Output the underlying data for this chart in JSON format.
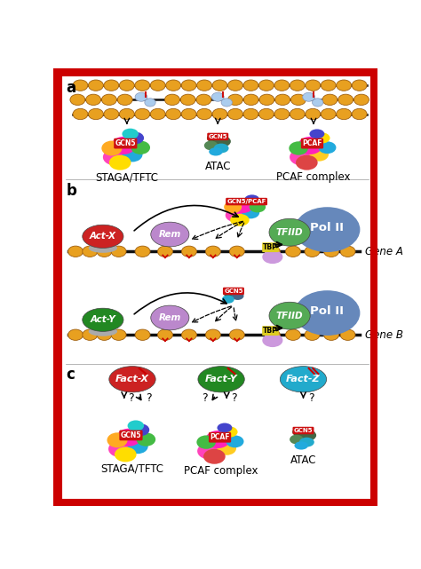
{
  "bg_color": "#ffffff",
  "border_color": "#cc0000",
  "border_width": 8,
  "section_a_label": "a",
  "section_b_label": "b",
  "section_c_label": "c",
  "nucleosome_color": "#e8a020",
  "nucleosome_outline": "#a06010",
  "dna_color": "#111111",
  "label_fontsize": 8.5,
  "small_fontsize": 7,
  "gene_label_fontsize": 8.5,
  "staga_label": "STAGA/TFTC",
  "atac_label": "ATAC",
  "pcaf_label": "PCAF complex",
  "gene_a_label": "Gene A",
  "gene_b_label": "Gene B",
  "staga_c_label": "STAGA/TFTC",
  "pcaf_c_label": "PCAF complex",
  "atac_c_label": "ATAC",
  "gcn5_color": "#cc1111",
  "gcn5_text_color": "#ffffff",
  "polii_color": "#6688bb",
  "tfiid_color": "#55aa55",
  "tbp_color": "#ddcc22",
  "act_x_color": "#cc2222",
  "act_y_color": "#228822",
  "rem_color": "#bb88cc",
  "fact_x_color": "#cc2222",
  "fact_y_color": "#228822",
  "fact_z_color": "#22aacc",
  "arrow_color": "#111111",
  "section_divider_color": "#999999",
  "staga_blobs": [
    [
      -18,
      12,
      17,
      12,
      "#ff44bb"
    ],
    [
      8,
      8,
      15,
      11,
      "#22aadd"
    ],
    [
      -5,
      -5,
      18,
      13,
      "#ff22bb"
    ],
    [
      20,
      -2,
      14,
      10,
      "#44bb44"
    ],
    [
      -22,
      -1,
      15,
      11,
      "#ffaa22"
    ],
    [
      12,
      -16,
      13,
      9,
      "#4444cc"
    ],
    [
      -10,
      20,
      16,
      11,
      "#ffdd00"
    ],
    [
      5,
      -22,
      12,
      8,
      "#22cccc"
    ]
  ],
  "atac_blobs": [
    [
      -5,
      -8,
      11,
      7,
      "#336633"
    ],
    [
      7,
      -3,
      12,
      8,
      "#446644"
    ],
    [
      -10,
      3,
      10,
      7,
      "#558855"
    ],
    [
      5,
      7,
      11,
      7,
      "#22aacc"
    ],
    [
      -3,
      12,
      10,
      6,
      "#22aadd"
    ]
  ],
  "pcaf_blobs": [
    [
      -18,
      12,
      17,
      12,
      "#ff44bb"
    ],
    [
      8,
      8,
      14,
      10,
      "#ffcc22"
    ],
    [
      -5,
      -5,
      18,
      13,
      "#ff22bb"
    ],
    [
      20,
      -2,
      13,
      9,
      "#22aadd"
    ],
    [
      -22,
      -1,
      14,
      10,
      "#44bb44"
    ],
    [
      12,
      -16,
      12,
      8,
      "#ffdd00"
    ],
    [
      -10,
      20,
      16,
      11,
      "#dd4444"
    ],
    [
      5,
      -22,
      11,
      7,
      "#4444cc"
    ]
  ],
  "gcn5pcaf_blobs": [
    [
      -14,
      10,
      15,
      10,
      "#ff44bb"
    ],
    [
      8,
      6,
      13,
      9,
      "#22aadd"
    ],
    [
      -4,
      -4,
      16,
      11,
      "#ff22bb"
    ],
    [
      18,
      -2,
      12,
      8,
      "#44bb44"
    ],
    [
      -18,
      -2,
      13,
      9,
      "#ffaa22"
    ],
    [
      10,
      -13,
      11,
      7,
      "#4444cc"
    ],
    [
      -8,
      17,
      14,
      9,
      "#ffdd00"
    ]
  ],
  "gcn5_small_blobs": [
    [
      -5,
      -6,
      10,
      6,
      "#336644"
    ],
    [
      6,
      -2,
      9,
      6,
      "#446688"
    ],
    [
      -8,
      3,
      9,
      6,
      "#22aacc"
    ]
  ]
}
